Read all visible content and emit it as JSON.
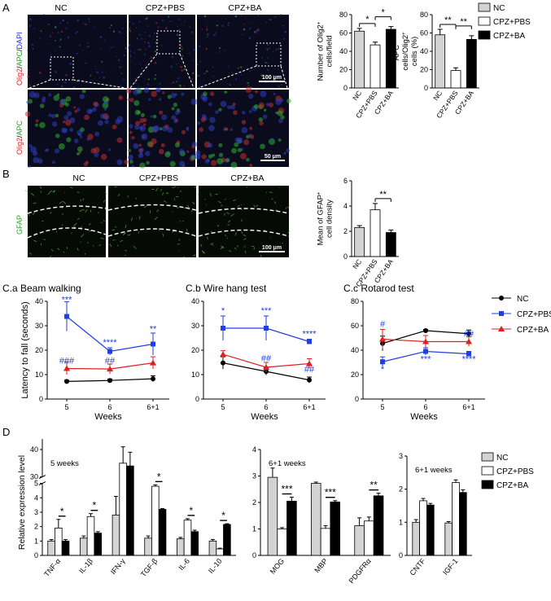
{
  "panels": {
    "a": "A",
    "b": "B",
    "c1": "C.a Beam walking",
    "c2": "C.b Wire hang test",
    "c3": "C.c Rotarod test",
    "d": "D"
  },
  "micro": {
    "groups": [
      "NC",
      "CPZ+PBS",
      "CPZ+BA"
    ],
    "a_stain": [
      "Olig2",
      "/",
      "APC",
      "/",
      "DAPI"
    ],
    "a_stain2": [
      "Olig2",
      "/",
      "APC"
    ],
    "b_stain": "GFAP",
    "scale_100": "100 μm",
    "scale_50": "50 μm"
  },
  "legend_bars": [
    "NC",
    "CPZ+PBS",
    "CPZ+BA"
  ],
  "legend_lines": [
    "NC",
    "CPZ+PBS",
    "CPZ+BA"
  ],
  "colors": {
    "nc_bar": "#d3d3d3",
    "pbs_bar": "#ffffff",
    "ba_bar": "#000000",
    "nc_line": "#000000",
    "pbs_line": "#1f3fe0",
    "ba_line": "#e01f1f",
    "micro_bg": "#0b0b1e",
    "gfap_bg": "#050a05"
  },
  "chart_data": [
    {
      "id": "olig2",
      "type": "bar",
      "ylabel": [
        "Number of Olig2",
        "cells/field"
      ],
      "categories": [
        "NC",
        "CPZ+PBS",
        "CPZ+BA"
      ],
      "values": [
        62,
        47,
        64
      ],
      "errors": [
        3,
        3,
        3
      ],
      "ylim": [
        0,
        80
      ],
      "yticks": [
        0,
        20,
        40,
        60,
        80
      ],
      "sig": [
        {
          "from": 0,
          "to": 1,
          "label": "*"
        },
        {
          "from": 1,
          "to": 2,
          "label": "*"
        }
      ]
    },
    {
      "id": "apc",
      "type": "bar",
      "ylabel": [
        "APC",
        "cells/Olig2",
        "cells (%)"
      ],
      "categories": [
        "NC",
        "CPZ+PBS",
        "CPZ+BA"
      ],
      "values": [
        58,
        19,
        53
      ],
      "errors": [
        6,
        3,
        4
      ],
      "ylim": [
        0,
        80
      ],
      "yticks": [
        0,
        20,
        40,
        60,
        80
      ],
      "sig": [
        {
          "from": 0,
          "to": 1,
          "label": "**"
        },
        {
          "from": 1,
          "to": 2,
          "label": "**"
        }
      ]
    },
    {
      "id": "gfap",
      "type": "bar",
      "ylabel": [
        "Mean of GFAP",
        "cell density"
      ],
      "categories": [
        "NC",
        "CPZ+PBS",
        "CPZ+BA"
      ],
      "values": [
        2.3,
        3.7,
        1.9
      ],
      "errors": [
        0.15,
        0.5,
        0.2
      ],
      "ylim": [
        0,
        6
      ],
      "yticks": [
        0,
        2,
        4,
        6
      ],
      "sig": [
        {
          "from": 1,
          "to": 2,
          "label": "**"
        }
      ]
    },
    {
      "id": "beam",
      "type": "line",
      "title": "C.a Beam walking",
      "xlabel": "Weeks",
      "ylabel": "Latency to fall (seconds)",
      "x": [
        "5",
        "6",
        "6+1"
      ],
      "ylim": [
        0,
        40
      ],
      "yticks": [
        0,
        10,
        20,
        30,
        40
      ],
      "series": [
        {
          "name": "NC",
          "values": [
            7.2,
            7.6,
            8.3
          ],
          "errors": [
            0.5,
            0.6,
            1.2
          ]
        },
        {
          "name": "CPZ+PBS",
          "values": [
            33.8,
            19.5,
            22.5
          ],
          "errors": [
            6,
            1.5,
            4.5
          ]
        },
        {
          "name": "CPZ+BA",
          "values": [
            12.5,
            12.3,
            14.8
          ],
          "errors": [
            2.5,
            2,
            2.5
          ]
        }
      ],
      "annotations": [
        {
          "x": 0,
          "y": 39.5,
          "text": "***",
          "color": "#1f3fe0"
        },
        {
          "x": 0,
          "y": 14.5,
          "text": "###",
          "color": "#1f3fe0"
        },
        {
          "x": 1,
          "y": 22,
          "text": "****",
          "color": "#1f3fe0"
        },
        {
          "x": 1,
          "y": 14.5,
          "text": "##",
          "color": "#1f3fe0"
        },
        {
          "x": 2,
          "y": 27.5,
          "text": "**",
          "color": "#1f3fe0"
        }
      ]
    },
    {
      "id": "wire",
      "type": "line",
      "title": "C.b Wire hang test",
      "xlabel": "Weeks",
      "x": [
        "5",
        "6",
        "6+1"
      ],
      "ylim": [
        0,
        40
      ],
      "yticks": [
        0,
        10,
        20,
        30,
        40
      ],
      "series": [
        {
          "name": "NC",
          "values": [
            14.8,
            11.3,
            7.8
          ],
          "errors": [
            2.5,
            1.5,
            1.2
          ]
        },
        {
          "name": "CPZ+PBS",
          "values": [
            29,
            29,
            23.5
          ],
          "errors": [
            5,
            5,
            1
          ]
        },
        {
          "name": "CPZ+BA",
          "values": [
            18.3,
            13,
            14.5
          ],
          "errors": [
            1.5,
            2,
            2
          ]
        }
      ],
      "annotations": [
        {
          "x": 0,
          "y": 35,
          "text": "*",
          "color": "#1f3fe0"
        },
        {
          "x": 1,
          "y": 35,
          "text": "***",
          "color": "#1f3fe0"
        },
        {
          "x": 1,
          "y": 15.5,
          "text": "##",
          "color": "#1f3fe0"
        },
        {
          "x": 2,
          "y": 25.5,
          "text": "****",
          "color": "#1f3fe0"
        },
        {
          "x": 2,
          "y": 11,
          "text": "##",
          "color": "#1f3fe0"
        }
      ]
    },
    {
      "id": "rotarod",
      "type": "line",
      "title": "C.c Rotarod test",
      "xlabel": "Weeks",
      "x": [
        "5",
        "6",
        "6+1"
      ],
      "ylim": [
        0,
        80
      ],
      "yticks": [
        0,
        20,
        40,
        60,
        80
      ],
      "series": [
        {
          "name": "NC",
          "values": [
            45.5,
            56,
            53.5
          ],
          "errors": [
            6,
            1,
            3
          ]
        },
        {
          "name": "CPZ+PBS",
          "values": [
            30.5,
            39,
            37
          ],
          "errors": [
            4,
            3,
            2
          ]
        },
        {
          "name": "CPZ+BA",
          "values": [
            49,
            47,
            47
          ],
          "errors": [
            8,
            5,
            4
          ]
        }
      ],
      "annotations": [
        {
          "x": 0,
          "y": 59,
          "text": "#",
          "color": "#1f3fe0"
        },
        {
          "x": 0,
          "y": 22,
          "text": "*",
          "color": "#1f3fe0"
        },
        {
          "x": 1,
          "y": 30.5,
          "text": "***",
          "color": "#1f3fe0"
        },
        {
          "x": 2,
          "y": 30.5,
          "text": "****",
          "color": "#1f3fe0"
        },
        {
          "x": 2,
          "y": 51,
          "text": "##",
          "color": "#1f3fe0"
        }
      ]
    },
    {
      "id": "d1",
      "type": "bar",
      "subtitle": "5 weeks",
      "ylabel": "Relative expression level",
      "categories": [
        "TNF-α",
        "IL-1β",
        "IFN-γ",
        "TGF-β",
        "IL-6",
        "IL-10"
      ],
      "series": [
        {
          "name": "NC",
          "values": [
            1.0,
            1.2,
            2.8,
            1.2,
            1.15,
            1.0
          ],
          "errors": [
            0.1,
            0.15,
            1.3,
            0.15,
            0.1,
            0.1
          ]
        },
        {
          "name": "CPZ+PBS",
          "values": [
            1.9,
            2.7,
            35,
            4.8,
            2.45,
            0.45
          ],
          "errors": [
            0.6,
            0.2,
            6,
            0.1,
            0.1,
            0.05
          ]
        },
        {
          "name": "CPZ+BA",
          "values": [
            1.0,
            1.55,
            34,
            3.2,
            1.65,
            2.15
          ],
          "errors": [
            0.1,
            0.1,
            5,
            0.05,
            0.1,
            0.05
          ]
        }
      ],
      "axis_break": {
        "low_max": 5,
        "high_min": 30,
        "high_max": 40
      },
      "yticks": [
        0,
        1,
        2,
        3,
        4,
        5,
        30,
        40
      ],
      "sig": [
        {
          "group": 0,
          "label": "*"
        },
        {
          "group": 1,
          "label": "*"
        },
        {
          "group": 3,
          "label": "*"
        },
        {
          "group": 4,
          "label": "*"
        },
        {
          "group": 5,
          "label": "*"
        }
      ]
    },
    {
      "id": "d2",
      "type": "bar",
      "subtitle": "6+1 weeks",
      "categories": [
        "MOG",
        "MBP",
        "PDGFRα"
      ],
      "series": [
        {
          "name": "NC",
          "values": [
            2.95,
            2.72,
            1.12
          ],
          "errors": [
            0.35,
            0.05,
            0.3
          ]
        },
        {
          "name": "CPZ+PBS",
          "values": [
            1.0,
            1.02,
            1.3
          ],
          "errors": [
            0.05,
            0.1,
            0.15
          ]
        },
        {
          "name": "CPZ+BA",
          "values": [
            2.05,
            2.02,
            2.25
          ],
          "errors": [
            0.15,
            0.05,
            0.1
          ]
        }
      ],
      "ylim": [
        0,
        4
      ],
      "yticks": [
        0,
        1,
        2,
        3,
        4
      ],
      "sig": [
        {
          "group": 0,
          "label": "***"
        },
        {
          "group": 1,
          "label": "***"
        },
        {
          "group": 2,
          "label": "**"
        }
      ]
    },
    {
      "id": "d3",
      "type": "bar",
      "subtitle": "6+1 weeks",
      "categories": [
        "CNTF",
        "IGF-1"
      ],
      "series": [
        {
          "name": "NC",
          "values": [
            1.0,
            0.98
          ],
          "errors": [
            0.08,
            0.04
          ]
        },
        {
          "name": "CPZ+PBS",
          "values": [
            1.65,
            2.2
          ],
          "errors": [
            0.07,
            0.08
          ]
        },
        {
          "name": "CPZ+BA",
          "values": [
            1.52,
            1.9
          ],
          "errors": [
            0.05,
            0.08
          ]
        }
      ],
      "ylim": [
        0,
        3
      ],
      "yticks": [
        0,
        1,
        2,
        3
      ]
    }
  ]
}
